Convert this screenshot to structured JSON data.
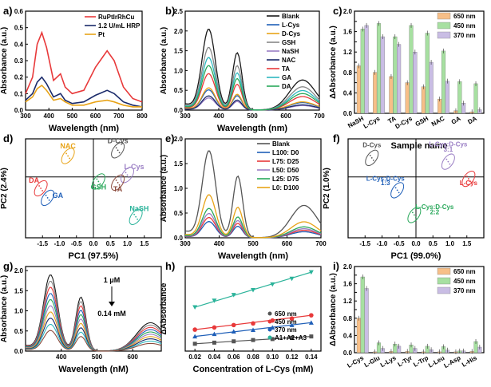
{
  "colors": {
    "black": "#1a1a1a",
    "red": "#e8393a",
    "blue": "#1f5fb8",
    "yellow": "#e8a317",
    "green": "#2aa85b",
    "cyan": "#2eb8c0",
    "grey": "#888888",
    "purple": "#9a7ec4",
    "brown": "#8b4a3c",
    "navy": "#1a2a6a",
    "orange": "#f7bf88",
    "lgreen": "#a7e0a1",
    "lavender": "#c9bde4",
    "teal": "#2bb39a",
    "dgrey": "#555555"
  },
  "chart_data": [
    {
      "panel": "a)",
      "type": "line",
      "xlabel": "Wavelength (nm)",
      "ylabel": "Absorbance (a.u.)",
      "xlim": [
        300,
        800
      ],
      "ylim": [
        0,
        0.6
      ],
      "xticks": [
        300,
        400,
        500,
        600,
        700,
        800
      ],
      "yticks": [
        0.0,
        0.1,
        0.2,
        0.3,
        0.4,
        0.5,
        0.6
      ],
      "ytick_labels": [
        "0.0",
        "0.1",
        "0.2",
        "0.3",
        "0.4",
        "0.5",
        "0.6"
      ],
      "legend": [
        "RuPtIrRhCu",
        "1.2 U/mL HRP",
        "Pt"
      ],
      "series": [
        {
          "name": "RuPtIrRhCu",
          "color": "red",
          "points": [
            [
              300,
              0.1
            ],
            [
              330,
              0.2
            ],
            [
              350,
              0.4
            ],
            [
              370,
              0.47
            ],
            [
              390,
              0.38
            ],
            [
              420,
              0.18
            ],
            [
              450,
              0.22
            ],
            [
              470,
              0.14
            ],
            [
              500,
              0.1
            ],
            [
              550,
              0.12
            ],
            [
              600,
              0.26
            ],
            [
              650,
              0.36
            ],
            [
              680,
              0.3
            ],
            [
              720,
              0.14
            ],
            [
              760,
              0.07
            ],
            [
              800,
              0.05
            ]
          ]
        },
        {
          "name": "1.2 U/mL HRP",
          "color": "navy",
          "points": [
            [
              300,
              0.06
            ],
            [
              330,
              0.1
            ],
            [
              350,
              0.17
            ],
            [
              370,
              0.2
            ],
            [
              390,
              0.16
            ],
            [
              420,
              0.08
            ],
            [
              450,
              0.1
            ],
            [
              470,
              0.06
            ],
            [
              500,
              0.04
            ],
            [
              550,
              0.05
            ],
            [
              600,
              0.09
            ],
            [
              650,
              0.12
            ],
            [
              680,
              0.1
            ],
            [
              720,
              0.05
            ],
            [
              760,
              0.03
            ],
            [
              800,
              0.02
            ]
          ]
        },
        {
          "name": "Pt",
          "color": "yellow",
          "points": [
            [
              300,
              0.05
            ],
            [
              330,
              0.08
            ],
            [
              350,
              0.13
            ],
            [
              370,
              0.15
            ],
            [
              390,
              0.12
            ],
            [
              420,
              0.06
            ],
            [
              450,
              0.07
            ],
            [
              470,
              0.05
            ],
            [
              500,
              0.03
            ],
            [
              550,
              0.03
            ],
            [
              600,
              0.05
            ],
            [
              650,
              0.06
            ],
            [
              680,
              0.05
            ],
            [
              720,
              0.03
            ],
            [
              760,
              0.02
            ],
            [
              800,
              0.02
            ]
          ]
        }
      ]
    },
    {
      "panel": "b)",
      "type": "line",
      "xlabel": "Wavelength (nm)",
      "ylabel": "Absorbance (a.u.)",
      "xlim": [
        300,
        700
      ],
      "ylim": [
        0,
        2.5
      ],
      "xticks": [
        300,
        400,
        500,
        600,
        700
      ],
      "yticks": [
        0.0,
        0.5,
        1.0,
        1.5,
        2.0,
        2.5
      ],
      "ytick_labels": [
        "0.0",
        "0.5",
        "1.0",
        "1.5",
        "2.0",
        "2.5"
      ],
      "legend": [
        "Blank",
        "L-Cys",
        "D-Cys",
        "GSH",
        "NaSH",
        "NAC",
        "TA",
        "GA",
        "DA"
      ],
      "legend_colors": [
        "black",
        "blue",
        "yellow",
        "grey",
        "purple",
        "navy",
        "red",
        "cyan",
        "green"
      ],
      "peaks": [
        2.0,
        0.5,
        0.55,
        1.55,
        0.3,
        0.35,
        0.9,
        1.3,
        1.1
      ]
    },
    {
      "panel": "c)",
      "type": "bar",
      "xlabel": "Sample name",
      "ylabel": "ΔAbsorbance (a.u.)",
      "ylim": [
        0,
        2.0
      ],
      "yticks": [
        0.0,
        0.2,
        0.4,
        0.6,
        0.8,
        1.0,
        1.2,
        1.4,
        1.6,
        1.8,
        2.0
      ],
      "ytick_labels": [
        "0.0",
        "0.2",
        "0.4",
        "0.6",
        "0.8",
        "1.0",
        "1.2",
        "1.4",
        "1.6",
        "1.8",
        "2.0"
      ],
      "categories": [
        "NaSH",
        "L-Cys",
        "TA",
        "D-Cys",
        "GSH",
        "NAC",
        "GA",
        "DA"
      ],
      "series": [
        {
          "name": "650 nm",
          "color": "orange",
          "values": [
            0.93,
            0.8,
            0.72,
            0.6,
            0.52,
            0.28,
            0.05,
            0.03
          ]
        },
        {
          "name": "450 nm",
          "color": "lgreen",
          "values": [
            1.65,
            1.76,
            1.5,
            1.72,
            1.57,
            1.22,
            0.62,
            0.58
          ]
        },
        {
          "name": "370 nm",
          "color": "lavender",
          "values": [
            1.72,
            1.5,
            1.35,
            1.2,
            1.0,
            0.63,
            0.2,
            0.07
          ]
        }
      ]
    },
    {
      "panel": "d)",
      "type": "scatter",
      "xlabel": "PC1 (97.5%)",
      "ylabel": "PC2 (2.4%)",
      "xlim": [
        -2,
        2
      ],
      "ylim": [
        -1.6,
        1.0
      ],
      "xticks": [
        -1.5,
        -1.0,
        -0.5,
        0.0,
        0.5,
        1.0,
        1.5
      ],
      "xtick_labels": [
        "-1.5",
        "-1.0",
        "-0.5",
        "0.0",
        "0.5",
        "1.0",
        "1.5"
      ],
      "groups": [
        {
          "name": "NAC",
          "color": "yellow",
          "center": [
            -0.75,
            0.55
          ]
        },
        {
          "name": "D-Cys",
          "color": "dgrey",
          "center": [
            0.72,
            0.7
          ]
        },
        {
          "name": "L-Cys",
          "color": "purple",
          "center": [
            1.0,
            0.05
          ]
        },
        {
          "name": "TA",
          "color": "brown",
          "center": [
            0.72,
            -0.15
          ]
        },
        {
          "name": "DA",
          "color": "red",
          "center": [
            -1.55,
            -0.3
          ]
        },
        {
          "name": "GA",
          "color": "blue",
          "center": [
            -1.35,
            -0.55
          ]
        },
        {
          "name": "GSH",
          "color": "green",
          "center": [
            0.15,
            -0.12
          ]
        },
        {
          "name": "NaSH",
          "color": "teal",
          "center": [
            1.25,
            -1.05
          ]
        }
      ]
    },
    {
      "panel": "e)",
      "type": "line",
      "xlabel": "Wavelength (nm)",
      "ylabel": "Absorbance (a.u.)",
      "xlim": [
        300,
        700
      ],
      "ylim": [
        0,
        2.0
      ],
      "xticks": [
        300,
        400,
        500,
        600,
        700
      ],
      "yticks": [
        0.0,
        0.5,
        1.0,
        1.5,
        2.0
      ],
      "ytick_labels": [
        "0.0",
        "0.5",
        "1.0",
        "1.5",
        "2.0"
      ],
      "legend": [
        "Blank",
        "L100:  D0",
        "L75:  D25",
        "L50:  D50",
        "L25:  D75",
        "L0:  D100"
      ],
      "legend_colors": [
        "dgrey",
        "blue",
        "red",
        "purple",
        "green",
        "yellow"
      ],
      "peaks": [
        1.72,
        0.32,
        0.4,
        0.48,
        0.58,
        0.85
      ]
    },
    {
      "panel": "f)",
      "type": "scatter",
      "xlabel": "PC1 (99.0%)",
      "ylabel": "PC2 (1.0%)",
      "xlim": [
        -2,
        2
      ],
      "ylim": [
        -1.6,
        1.0
      ],
      "xticks": [
        -1.5,
        -1.0,
        -0.5,
        0.0,
        0.5,
        1.0,
        1.5
      ],
      "xtick_labels": [
        "-1.5",
        "-1.0",
        "-0.5",
        "0.0",
        "0.5",
        "1.0",
        "1.5"
      ],
      "groups": [
        {
          "name": "D-Cys",
          "color": "dgrey",
          "center": [
            -1.3,
            0.5
          ]
        },
        {
          "name": "L-Cys:D-Cys 3:1",
          "color": "purple",
          "center": [
            0.95,
            0.4
          ]
        },
        {
          "name": "L-Cys",
          "color": "red",
          "center": [
            1.55,
            -0.05
          ]
        },
        {
          "name": "L-Cys:D-Cys 1:3",
          "color": "blue",
          "center": [
            -0.55,
            -0.35
          ]
        },
        {
          "name": "L-Cys:D-Cys 2:2",
          "color": "green",
          "center": [
            -0.05,
            -1.0
          ]
        }
      ],
      "labels": {
        "d": "D-Cys",
        "l31a": "L-Cys:D-Cys",
        "l31b": "3:1",
        "l": "L-Cys",
        "l13a": "L-Cys:D-Cys",
        "l13b": "1:3",
        "l22a": "L-Cys:D-Cys",
        "l22b": "2:2"
      }
    },
    {
      "panel": "g)",
      "type": "line",
      "xlabel": "Wavelength (nM)",
      "ylabel": "Absorbance (a.u.)",
      "xlim": [
        300,
        680
      ],
      "ylim": [
        0,
        2.1
      ],
      "xticks": [
        400,
        500,
        600
      ],
      "yticks": [
        0.0,
        0.5,
        1.0,
        1.5,
        2.0
      ],
      "ytick_labels": [
        "0.0",
        "0.5",
        "1.0",
        "1.5",
        "2.0"
      ],
      "annot_top": "1 μM",
      "annot_bottom": "0.14 mM",
      "peaks": [
        1.85,
        1.7,
        1.55,
        1.4,
        1.25,
        1.1,
        0.95,
        0.8,
        0.65,
        0.5
      ],
      "colors": [
        "black",
        "grey",
        "red",
        "blue",
        "green",
        "purple",
        "yellow",
        "navy",
        "cyan",
        "brown"
      ]
    },
    {
      "panel": "h)",
      "type": "scatter",
      "xlabel": "Concentration of L-Cys (mM)",
      "ylabel": "ΔAbsorbance",
      "xlim": [
        0.01,
        0.15
      ],
      "ylim": [
        0,
        5.2
      ],
      "xticks": [
        0.02,
        0.04,
        0.06,
        0.08,
        0.1,
        0.12,
        0.14
      ],
      "xtick_labels": [
        "0.02",
        "0.04",
        "0.06",
        "0.08",
        "0.10",
        "0.12",
        "0.14"
      ],
      "legend": [
        "650 nm",
        "450 nm",
        "370 nm",
        "A1+A2+A3"
      ],
      "x": [
        0.02,
        0.04,
        0.06,
        0.08,
        0.1,
        0.12,
        0.14
      ],
      "series": [
        {
          "name": "650 nm",
          "color": "dgrey",
          "marker": "square",
          "values": [
            0.45,
            0.52,
            0.6,
            0.68,
            0.74,
            0.82,
            0.9
          ]
        },
        {
          "name": "450 nm",
          "color": "red",
          "marker": "circle",
          "values": [
            1.32,
            1.45,
            1.6,
            1.7,
            1.88,
            2.0,
            2.2
          ]
        },
        {
          "name": "370 nm",
          "color": "blue",
          "marker": "triangle",
          "values": [
            0.9,
            1.05,
            1.2,
            1.3,
            1.45,
            1.6,
            1.75
          ]
        },
        {
          "name": "A1+A2+A3",
          "color": "teal",
          "marker": "triangle-down",
          "values": [
            2.7,
            3.1,
            3.45,
            3.75,
            4.1,
            4.45,
            4.85
          ]
        }
      ]
    },
    {
      "panel": "i)",
      "type": "bar",
      "xlabel": "",
      "ylabel": "ΔAbsorbance (a.u.)",
      "ylim": [
        0,
        2.0
      ],
      "yticks": [
        0.0,
        0.2,
        0.4,
        0.6,
        0.8,
        1.0,
        1.2,
        1.4,
        1.6,
        1.8,
        2.0
      ],
      "ytick_labels": [
        "0.0",
        "0.2",
        "0.4",
        "0.6",
        "0.8",
        "1.0",
        "1.2",
        "1.4",
        "1.6",
        "1.8",
        "2.0"
      ],
      "categories": [
        "L-Cys",
        "L-Glu",
        "L-Lys",
        "L-Tyr",
        "L-Trp",
        "L-Leu",
        "L-Asp",
        "L-His"
      ],
      "series": [
        {
          "name": "650 nm",
          "color": "orange",
          "values": [
            0.8,
            0.02,
            0.03,
            0.03,
            0.02,
            0.02,
            0.02,
            0.03
          ]
        },
        {
          "name": "450 nm",
          "color": "lgreen",
          "values": [
            1.76,
            0.23,
            0.2,
            0.18,
            0.15,
            0.14,
            0.04,
            0.26
          ]
        },
        {
          "name": "370 nm",
          "color": "lavender",
          "values": [
            1.49,
            0.1,
            0.15,
            0.1,
            0.07,
            0.06,
            0.04,
            0.13
          ]
        }
      ]
    }
  ]
}
